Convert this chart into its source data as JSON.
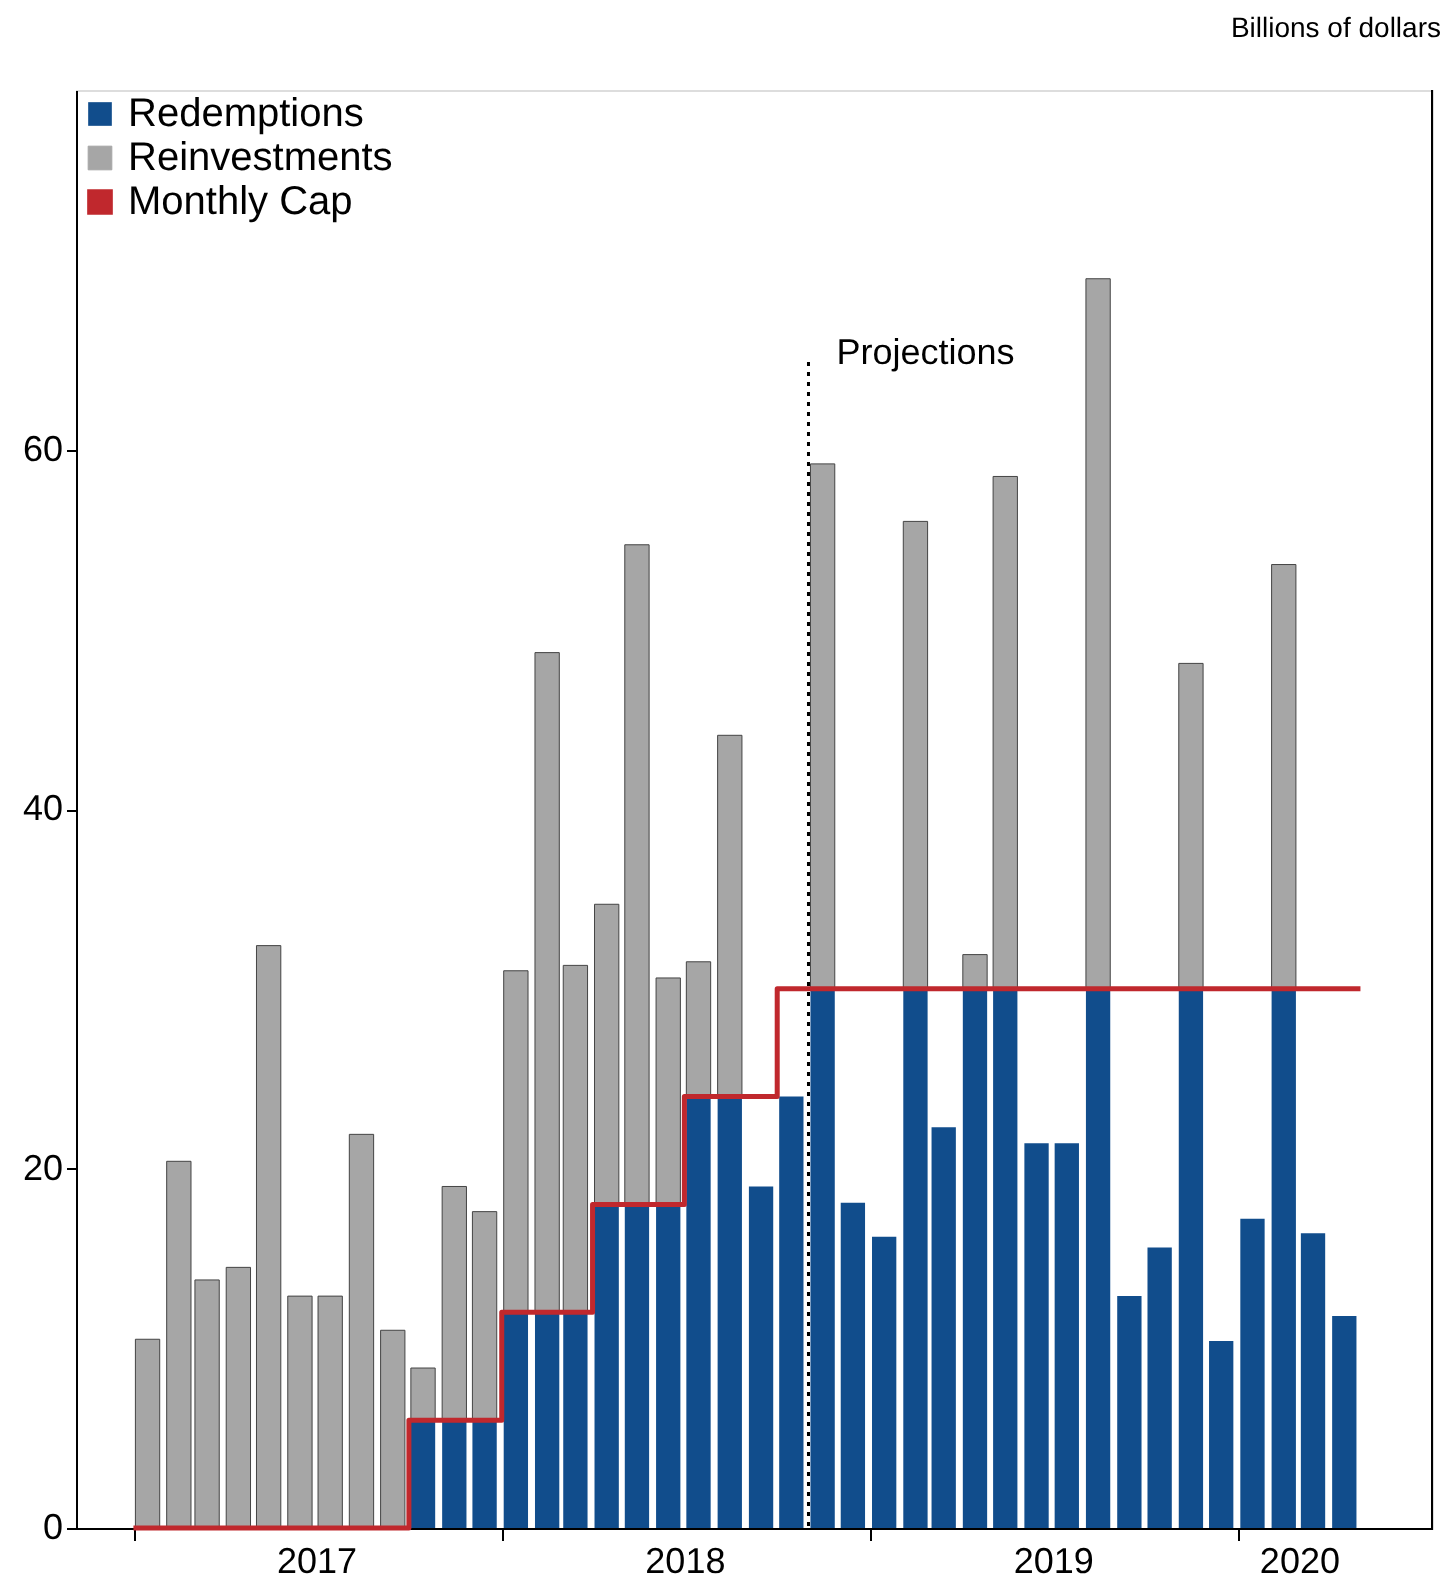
{
  "chart_data": {
    "type": "bar",
    "stacked": true,
    "ylabel": "Billions of dollars",
    "x": [
      "2017-01-15",
      "2017-02-15",
      "2017-03-15",
      "2017-04-15",
      "2017-05-15",
      "2017-06-15",
      "2017-07-15",
      "2017-08-15",
      "2017-09-15",
      "2017-10-15",
      "2017-11-15",
      "2017-12-15",
      "2018-01-15",
      "2018-02-15",
      "2018-03-15",
      "2018-04-15",
      "2018-05-15",
      "2018-06-15",
      "2018-07-15",
      "2018-08-15",
      "2018-09-15",
      "2018-10-15",
      "2018-11-15",
      "2018-12-15",
      "2019-01-15",
      "2019-02-15",
      "2019-03-15",
      "2019-04-15",
      "2019-05-15",
      "2019-06-15",
      "2019-07-15",
      "2019-08-15",
      "2019-09-15",
      "2019-10-15",
      "2019-11-15",
      "2019-12-15",
      "2020-01-15",
      "2020-02-15",
      "2020-03-15",
      "2020-04-15"
    ],
    "series": [
      {
        "name": "Redemptions",
        "color": "#114d8c",
        "values": [
          null,
          null,
          null,
          null,
          null,
          null,
          null,
          null,
          null,
          6,
          6,
          6,
          12,
          12,
          12,
          18,
          18,
          18,
          24,
          24,
          19.0,
          24,
          30,
          18.1,
          16.2,
          30,
          22.3,
          30,
          30,
          21.4,
          21.4,
          30,
          12.9,
          15.6,
          30,
          10.4,
          17.2,
          30,
          16.4,
          11.8
        ]
      },
      {
        "name": "Reinvestments",
        "color": "#a6a6a6",
        "values": [
          10.5,
          20.4,
          13.8,
          14.5,
          32.4,
          12.9,
          12.9,
          21.9,
          11.0,
          2.9,
          13.0,
          11.6,
          19.0,
          36.7,
          19.3,
          16.7,
          36.7,
          12.6,
          7.5,
          20.1,
          null,
          null,
          29.2,
          null,
          null,
          26.0,
          null,
          1.9,
          28.5,
          null,
          null,
          39.5,
          null,
          null,
          18.1,
          null,
          null,
          23.6,
          null,
          null
        ]
      },
      {
        "name": "Monthly Cap",
        "type": "step",
        "color": "#c0282d",
        "x": [
          "2017-01",
          "2017-10",
          "2018-01",
          "2018-04",
          "2018-07",
          "2018-10",
          "2020-05"
        ],
        "values": [
          0,
          6,
          12,
          18,
          24,
          30,
          30
        ]
      }
    ],
    "xlim": [
      "2016-11-15",
      "2020-07"
    ],
    "xticks": [
      {
        "value": "2017-01",
        "label": null
      },
      {
        "value": "2018-01",
        "label": null
      },
      {
        "value": "2019-01",
        "label": null
      },
      {
        "value": "2020-01",
        "label": null
      },
      {
        "value": "2017-07",
        "label": "2017"
      },
      {
        "value": "2018-07",
        "label": "2018"
      },
      {
        "value": "2019-07",
        "label": "2019"
      },
      {
        "value": "2020-03",
        "label": "2020"
      }
    ],
    "ylim": [
      0,
      80
    ],
    "yticks": [
      0,
      20,
      40,
      60
    ],
    "ref_lines": [
      {
        "axis": "x",
        "value": "2018-11",
        "label": "Projections",
        "line_style": "dotted"
      }
    ],
    "legend": "top left",
    "grid": false
  }
}
